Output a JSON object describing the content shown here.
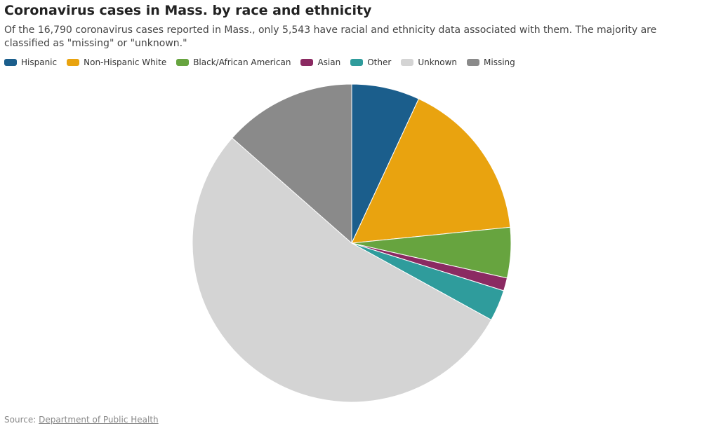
{
  "chart_data": {
    "type": "pie",
    "title": "Coronavirus cases in Mass. by race and ethnicity",
    "subtitle": "Of the 16,790 coronavirus cases reported in Mass., only 5,543 have racial and ethnicity data associated with them. The majority are classified as \"missing\" or \"unknown.\"",
    "categories": [
      "Hispanic",
      "Non-Hispanic White",
      "Black/African American",
      "Asian",
      "Other",
      "Unknown",
      "Missing"
    ],
    "values": [
      1160,
      2770,
      860,
      220,
      533,
      8980,
      2267
    ],
    "colors": [
      "#1b5e8c",
      "#e9a30f",
      "#67a43f",
      "#8b2a62",
      "#2f9c9c",
      "#d4d4d4",
      "#8a8a8a"
    ],
    "legend": "top-left",
    "source_label": "Source:",
    "source_link": "Department of Public Health"
  }
}
